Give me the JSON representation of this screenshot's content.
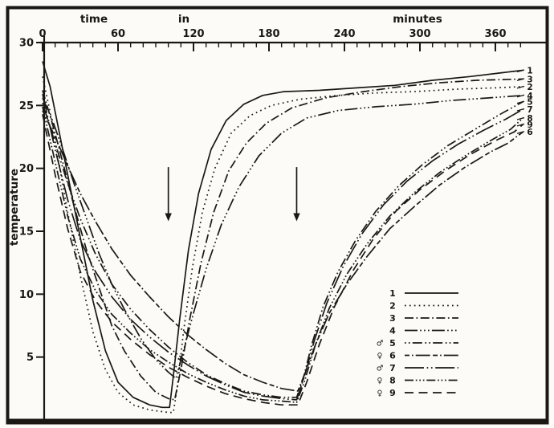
{
  "colors": {
    "ink": "#1b1814",
    "paper": "#fcfbf7"
  },
  "chart_data": {
    "type": "line",
    "title": "",
    "xlabel": "time in minutes",
    "xlabel_parts": [
      "time",
      "in",
      "minutes"
    ],
    "ylabel": "temperature",
    "xlim": [
      0,
      385
    ],
    "ylim": [
      0,
      30
    ],
    "x_ticks": [
      0,
      60,
      120,
      180,
      240,
      300,
      360
    ],
    "x_minor_step": 10,
    "y_ticks": [
      5,
      10,
      15,
      20,
      25,
      30
    ],
    "x_axis_position": "top",
    "grid": false,
    "legend_position": "lower right",
    "arrows": [
      {
        "t": 100,
        "temp_top": 20.1,
        "temp_tip": 15.8
      },
      {
        "t": 202,
        "temp_top": 20.1,
        "temp_tip": 15.8
      }
    ],
    "right_edge_labels": [
      {
        "label": "1",
        "temp": 27.8
      },
      {
        "label": "3",
        "temp": 27.1
      },
      {
        "label": "2",
        "temp": 26.5
      },
      {
        "label": "4",
        "temp": 25.8
      },
      {
        "label": "5",
        "temp": 25.3
      },
      {
        "label": "7",
        "temp": 24.7
      },
      {
        "label": "8",
        "temp": 24.0
      },
      {
        "label": "9",
        "temp": 23.5
      },
      {
        "label": "6",
        "temp": 22.9
      }
    ],
    "legend": {
      "entries": [
        {
          "label": "1",
          "sex": "",
          "line_style": "solid"
        },
        {
          "label": "2",
          "sex": "",
          "line_style": "dotted"
        },
        {
          "label": "3",
          "sex": "",
          "line_style": "dash-dot"
        },
        {
          "label": "4",
          "sex": "",
          "line_style": "dash-dot-dot-dot"
        },
        {
          "label": "5",
          "sex": "♂",
          "line_style": "dot-dot-dash"
        },
        {
          "label": "6",
          "sex": "♀",
          "line_style": "dash-dot-long-dash"
        },
        {
          "label": "7",
          "sex": "♂",
          "line_style": "long-dash-dot-dot"
        },
        {
          "label": "8",
          "sex": "♀",
          "line_style": "dash-dot-dot-dot-short"
        },
        {
          "label": "9",
          "sex": "♀",
          "line_style": "long-dash"
        }
      ]
    },
    "series": [
      {
        "label": "1",
        "sex": "",
        "line_style": "solid",
        "end_temp": 27.8,
        "points": [
          [
            0,
            28.5
          ],
          [
            6,
            26.5
          ],
          [
            12,
            23.5
          ],
          [
            20,
            19.5
          ],
          [
            30,
            14.5
          ],
          [
            40,
            9.5
          ],
          [
            50,
            5.5
          ],
          [
            60,
            3
          ],
          [
            72,
            1.8
          ],
          [
            85,
            1.2
          ],
          [
            95,
            1.0
          ],
          [
            101,
            1.0
          ],
          [
            104,
            3.5
          ],
          [
            109,
            8
          ],
          [
            116,
            13.5
          ],
          [
            124,
            18
          ],
          [
            134,
            21.5
          ],
          [
            146,
            23.8
          ],
          [
            160,
            25.1
          ],
          [
            175,
            25.8
          ],
          [
            192,
            26.1
          ],
          [
            220,
            26.2
          ],
          [
            250,
            26.4
          ],
          [
            280,
            26.6
          ],
          [
            310,
            27.0
          ],
          [
            340,
            27.3
          ],
          [
            365,
            27.6
          ],
          [
            382,
            27.8
          ]
        ]
      },
      {
        "label": "2",
        "sex": "",
        "line_style": "dotted",
        "end_temp": 26.5,
        "points": [
          [
            0,
            27.3
          ],
          [
            6,
            24.5
          ],
          [
            12,
            21
          ],
          [
            20,
            16.5
          ],
          [
            30,
            11.5
          ],
          [
            40,
            7
          ],
          [
            50,
            4
          ],
          [
            60,
            2.2
          ],
          [
            72,
            1.2
          ],
          [
            85,
            0.8
          ],
          [
            100,
            0.6
          ],
          [
            104,
            0.6
          ],
          [
            107,
            2.5
          ],
          [
            112,
            7
          ],
          [
            119,
            12
          ],
          [
            127,
            16.5
          ],
          [
            137,
            20
          ],
          [
            150,
            22.8
          ],
          [
            165,
            24.2
          ],
          [
            182,
            25.0
          ],
          [
            205,
            25.5
          ],
          [
            235,
            25.8
          ],
          [
            265,
            26.0
          ],
          [
            295,
            26.1
          ],
          [
            330,
            26.3
          ],
          [
            360,
            26.4
          ],
          [
            382,
            26.5
          ]
        ]
      },
      {
        "label": "3",
        "sex": "",
        "line_style": "dash-dot",
        "end_temp": 27.1,
        "points": [
          [
            0,
            26.2
          ],
          [
            8,
            23.5
          ],
          [
            16,
            20.5
          ],
          [
            25,
            17
          ],
          [
            35,
            13.5
          ],
          [
            45,
            10.5
          ],
          [
            55,
            7.5
          ],
          [
            65,
            5.5
          ],
          [
            78,
            3.5
          ],
          [
            90,
            2.2
          ],
          [
            100,
            1.7
          ],
          [
            105,
            1.6
          ],
          [
            110,
            4
          ],
          [
            117,
            8
          ],
          [
            126,
            12.5
          ],
          [
            136,
            16.5
          ],
          [
            148,
            19.8
          ],
          [
            162,
            22
          ],
          [
            178,
            23.6
          ],
          [
            198,
            24.8
          ],
          [
            225,
            25.6
          ],
          [
            255,
            26.1
          ],
          [
            285,
            26.5
          ],
          [
            315,
            26.8
          ],
          [
            345,
            27.0
          ],
          [
            382,
            27.1
          ]
        ]
      },
      {
        "label": "4",
        "sex": "",
        "line_style": "dash-dot-dot-dot",
        "end_temp": 25.8,
        "points": [
          [
            0,
            25.6
          ],
          [
            8,
            23.8
          ],
          [
            16,
            21.5
          ],
          [
            25,
            18.8
          ],
          [
            35,
            16
          ],
          [
            45,
            13.2
          ],
          [
            55,
            10.8
          ],
          [
            65,
            8.8
          ],
          [
            78,
            6.5
          ],
          [
            90,
            4.8
          ],
          [
            100,
            3.8
          ],
          [
            106,
            3.3
          ],
          [
            112,
            5.5
          ],
          [
            120,
            8.5
          ],
          [
            130,
            12
          ],
          [
            142,
            15.5
          ],
          [
            156,
            18.5
          ],
          [
            172,
            21
          ],
          [
            190,
            22.8
          ],
          [
            210,
            24
          ],
          [
            235,
            24.6
          ],
          [
            265,
            24.9
          ],
          [
            295,
            25.1
          ],
          [
            325,
            25.4
          ],
          [
            355,
            25.6
          ],
          [
            382,
            25.8
          ]
        ]
      },
      {
        "label": "5",
        "sex": "♂",
        "line_style": "dot-dot-dash",
        "end_temp": 25.3,
        "points": [
          [
            0,
            25.2
          ],
          [
            10,
            22
          ],
          [
            20,
            18.8
          ],
          [
            30,
            16
          ],
          [
            42,
            13.2
          ],
          [
            55,
            10.8
          ],
          [
            70,
            8.8
          ],
          [
            85,
            7.2
          ],
          [
            100,
            5.8
          ],
          [
            115,
            4.6
          ],
          [
            130,
            3.6
          ],
          [
            145,
            2.9
          ],
          [
            160,
            2.3
          ],
          [
            175,
            2.0
          ],
          [
            190,
            1.8
          ],
          [
            202,
            1.8
          ],
          [
            207,
            3.2
          ],
          [
            214,
            6
          ],
          [
            223,
            9
          ],
          [
            235,
            11.8
          ],
          [
            249,
            14.3
          ],
          [
            265,
            16.6
          ],
          [
            283,
            18.6
          ],
          [
            302,
            20.3
          ],
          [
            322,
            21.8
          ],
          [
            342,
            23
          ],
          [
            362,
            24.2
          ],
          [
            382,
            25.3
          ]
        ]
      },
      {
        "label": "6",
        "sex": "♀",
        "line_style": "dash-dot-long-dash",
        "end_temp": 22.9,
        "points": [
          [
            0,
            24.6
          ],
          [
            10,
            22.5
          ],
          [
            20,
            20.2
          ],
          [
            30,
            18
          ],
          [
            42,
            15.8
          ],
          [
            55,
            13.6
          ],
          [
            70,
            11.5
          ],
          [
            85,
            9.8
          ],
          [
            100,
            8.2
          ],
          [
            115,
            6.8
          ],
          [
            130,
            5.6
          ],
          [
            145,
            4.5
          ],
          [
            160,
            3.6
          ],
          [
            175,
            3.0
          ],
          [
            190,
            2.5
          ],
          [
            203,
            2.3
          ],
          [
            209,
            3.8
          ],
          [
            217,
            6
          ],
          [
            228,
            8.5
          ],
          [
            242,
            10.8
          ],
          [
            258,
            13
          ],
          [
            276,
            15.2
          ],
          [
            296,
            17
          ],
          [
            316,
            18.7
          ],
          [
            336,
            20.1
          ],
          [
            356,
            21.3
          ],
          [
            370,
            22
          ],
          [
            382,
            22.9
          ]
        ]
      },
      {
        "label": "7",
        "sex": "♂",
        "line_style": "long-dash-dot-dot",
        "end_temp": 24.7,
        "points": [
          [
            0,
            25.9
          ],
          [
            10,
            21.5
          ],
          [
            20,
            17.5
          ],
          [
            30,
            14.3
          ],
          [
            42,
            11.8
          ],
          [
            55,
            9.8
          ],
          [
            70,
            8
          ],
          [
            85,
            6.6
          ],
          [
            100,
            5.4
          ],
          [
            115,
            4.4
          ],
          [
            130,
            3.5
          ],
          [
            145,
            2.8
          ],
          [
            160,
            2.2
          ],
          [
            175,
            1.9
          ],
          [
            190,
            1.7
          ],
          [
            202,
            1.6
          ],
          [
            208,
            3.4
          ],
          [
            216,
            6.3
          ],
          [
            226,
            9.3
          ],
          [
            239,
            12.2
          ],
          [
            254,
            14.8
          ],
          [
            271,
            17.1
          ],
          [
            290,
            19
          ],
          [
            310,
            20.6
          ],
          [
            330,
            21.9
          ],
          [
            350,
            23
          ],
          [
            368,
            23.9
          ],
          [
            382,
            24.7
          ]
        ]
      },
      {
        "label": "8",
        "sex": "♀",
        "line_style": "dash-dot-dot-dot-short",
        "end_temp": 24.0,
        "points": [
          [
            0,
            24.9
          ],
          [
            10,
            20.5
          ],
          [
            20,
            16.2
          ],
          [
            30,
            12.8
          ],
          [
            42,
            10.3
          ],
          [
            55,
            8.4
          ],
          [
            70,
            6.9
          ],
          [
            85,
            5.6
          ],
          [
            100,
            4.6
          ],
          [
            115,
            3.7
          ],
          [
            130,
            3.0
          ],
          [
            145,
            2.4
          ],
          [
            160,
            1.9
          ],
          [
            175,
            1.6
          ],
          [
            190,
            1.5
          ],
          [
            202,
            1.4
          ],
          [
            208,
            3
          ],
          [
            217,
            6
          ],
          [
            228,
            8.9
          ],
          [
            242,
            11.6
          ],
          [
            258,
            14
          ],
          [
            276,
            16.2
          ],
          [
            296,
            18.1
          ],
          [
            316,
            19.7
          ],
          [
            336,
            21
          ],
          [
            356,
            22.2
          ],
          [
            372,
            23.1
          ],
          [
            382,
            24.0
          ]
        ]
      },
      {
        "label": "9",
        "sex": "♀",
        "line_style": "long-dash",
        "end_temp": 23.5,
        "points": [
          [
            0,
            24.3
          ],
          [
            10,
            19.5
          ],
          [
            20,
            15.2
          ],
          [
            30,
            11.8
          ],
          [
            42,
            9.5
          ],
          [
            55,
            7.8
          ],
          [
            70,
            6.4
          ],
          [
            85,
            5.2
          ],
          [
            100,
            4.2
          ],
          [
            115,
            3.4
          ],
          [
            130,
            2.7
          ],
          [
            145,
            2.1
          ],
          [
            160,
            1.7
          ],
          [
            175,
            1.4
          ],
          [
            190,
            1.2
          ],
          [
            203,
            1.2
          ],
          [
            210,
            3
          ],
          [
            220,
            6
          ],
          [
            232,
            9
          ],
          [
            247,
            11.9
          ],
          [
            263,
            14.4
          ],
          [
            281,
            16.6
          ],
          [
            300,
            18.3
          ],
          [
            320,
            19.8
          ],
          [
            340,
            21.1
          ],
          [
            360,
            22.2
          ],
          [
            375,
            22.9
          ],
          [
            382,
            23.5
          ]
        ]
      }
    ]
  }
}
